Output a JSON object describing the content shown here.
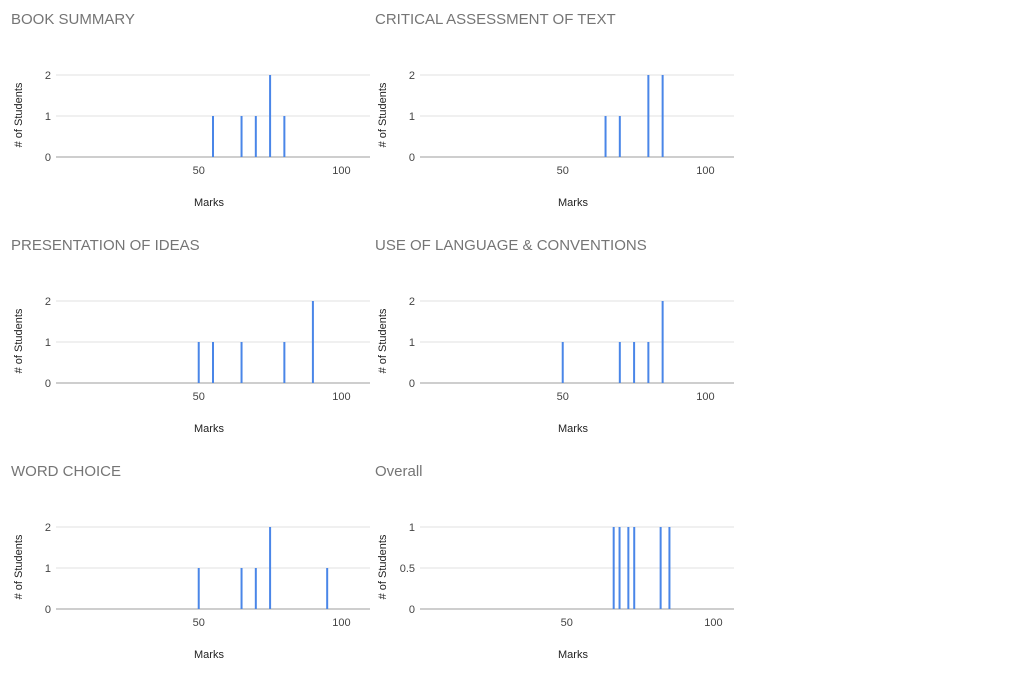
{
  "colors": {
    "bar": "#4a86e8",
    "grid": "#e0e0e0",
    "baseline": "#9e9e9e",
    "title": "#757575"
  },
  "chart_data": [
    {
      "type": "bar",
      "title": "BOOK SUMMARY",
      "xlabel": "Marks",
      "ylabel": "# of Students",
      "xlim": [
        0,
        110
      ],
      "ylim": [
        0,
        2
      ],
      "xticks": [
        50,
        100
      ],
      "yticks": [
        0,
        1,
        2
      ],
      "grid": true,
      "x": [
        55,
        65,
        70,
        75,
        80
      ],
      "values": [
        1,
        1,
        1,
        2,
        1
      ]
    },
    {
      "type": "bar",
      "title": "CRITICAL ASSESSMENT OF TEXT",
      "xlabel": "Marks",
      "ylabel": "# of Students",
      "xlim": [
        0,
        110
      ],
      "ylim": [
        0,
        2
      ],
      "xticks": [
        50,
        100
      ],
      "yticks": [
        0,
        1,
        2
      ],
      "grid": true,
      "x": [
        65,
        70,
        80,
        85
      ],
      "values": [
        1,
        1,
        2,
        2
      ]
    },
    {
      "type": "bar",
      "title": "PRESENTATION OF IDEAS",
      "xlabel": "Marks",
      "ylabel": "# of Students",
      "xlim": [
        0,
        110
      ],
      "ylim": [
        0,
        2
      ],
      "xticks": [
        50,
        100
      ],
      "yticks": [
        0,
        1,
        2
      ],
      "grid": true,
      "x": [
        50,
        55,
        65,
        80,
        90
      ],
      "values": [
        1,
        1,
        1,
        1,
        2
      ]
    },
    {
      "type": "bar",
      "title": "USE OF LANGUAGE & CONVENTIONS",
      "xlabel": "Marks",
      "ylabel": "# of Students",
      "xlim": [
        0,
        110
      ],
      "ylim": [
        0,
        2
      ],
      "xticks": [
        50,
        100
      ],
      "yticks": [
        0,
        1,
        2
      ],
      "grid": true,
      "x": [
        50,
        70,
        75,
        80,
        85
      ],
      "values": [
        1,
        1,
        1,
        1,
        2
      ]
    },
    {
      "type": "bar",
      "title": "WORD CHOICE",
      "xlabel": "Marks",
      "ylabel": "# of Students",
      "xlim": [
        0,
        110
      ],
      "ylim": [
        0,
        2
      ],
      "xticks": [
        50,
        100
      ],
      "yticks": [
        0,
        1,
        2
      ],
      "grid": true,
      "x": [
        50,
        65,
        70,
        75,
        95
      ],
      "values": [
        1,
        1,
        1,
        2,
        1
      ]
    },
    {
      "type": "bar",
      "title": "Overall",
      "xlabel": "Marks",
      "ylabel": "# of Students",
      "xlim": [
        0,
        107
      ],
      "ylim": [
        0,
        1
      ],
      "xticks": [
        50,
        100
      ],
      "yticks": [
        0,
        0.5,
        1
      ],
      "grid": true,
      "x": [
        66,
        68,
        71,
        73,
        82,
        85
      ],
      "values": [
        1,
        1,
        1,
        1,
        1,
        1
      ]
    }
  ]
}
